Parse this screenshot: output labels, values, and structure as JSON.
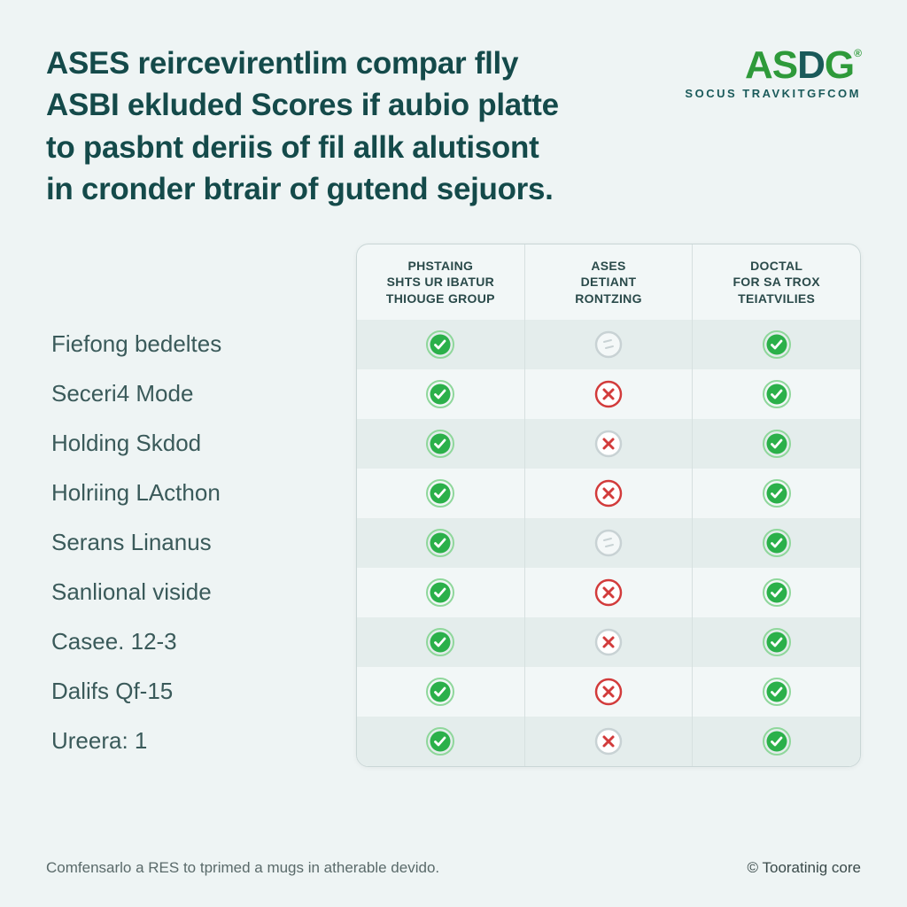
{
  "headline_lines": [
    "ASES reircevirentlim compar flly",
    "ASBI ekluded Scores if aubio platte",
    "to pasbnt deriis of fil allk alutisont",
    "in cronder btrair of gutend sejuors."
  ],
  "logo": {
    "text_a": "AS",
    "text_b": "D",
    "text_c": "G",
    "reg": "®",
    "sub": "SOCUS TRAVKITGFCOM"
  },
  "columns": [
    "PHSTAING\nSHTS UR IBATUR\nTHIOUGE GROUP",
    "ASES\nDETIANT\nRONTZING",
    "DOCTAL\nFOR SA TROX\nTEIATVILIES"
  ],
  "rows": [
    {
      "label": "Fiefong bedeltes",
      "cells": [
        "check",
        "neutral",
        "check"
      ]
    },
    {
      "label": "Seceri4 Mode",
      "cells": [
        "check",
        "fail-ring",
        "check"
      ]
    },
    {
      "label": "Holding Skdod",
      "cells": [
        "check",
        "fail-x",
        "check"
      ]
    },
    {
      "label": "Holriing LActhon",
      "cells": [
        "check",
        "fail-ring",
        "check"
      ]
    },
    {
      "label": "Serans Linanus",
      "cells": [
        "check",
        "neutral",
        "check"
      ]
    },
    {
      "label": "Sanlional viside",
      "cells": [
        "check",
        "fail-ring",
        "check"
      ]
    },
    {
      "label": "Casee. 12-3",
      "cells": [
        "check",
        "fail-x",
        "check"
      ]
    },
    {
      "label": "Dalifs Qf-15",
      "cells": [
        "check",
        "fail-ring",
        "check"
      ]
    },
    {
      "label": "Ureera: 1",
      "cells": [
        "check",
        "fail-x",
        "check"
      ]
    }
  ],
  "footer_left": "Comfensarlo a RES to tprimed a mugs in atherable devido.",
  "footer_right": "© Tooratinig core",
  "colors": {
    "check_fill": "#2bb04a",
    "check_ring": "#8fd79b",
    "fail_stroke": "#d23b3b",
    "neutral_stroke": "#c8d2d4",
    "neutral_fill": "#f4f8f8"
  }
}
